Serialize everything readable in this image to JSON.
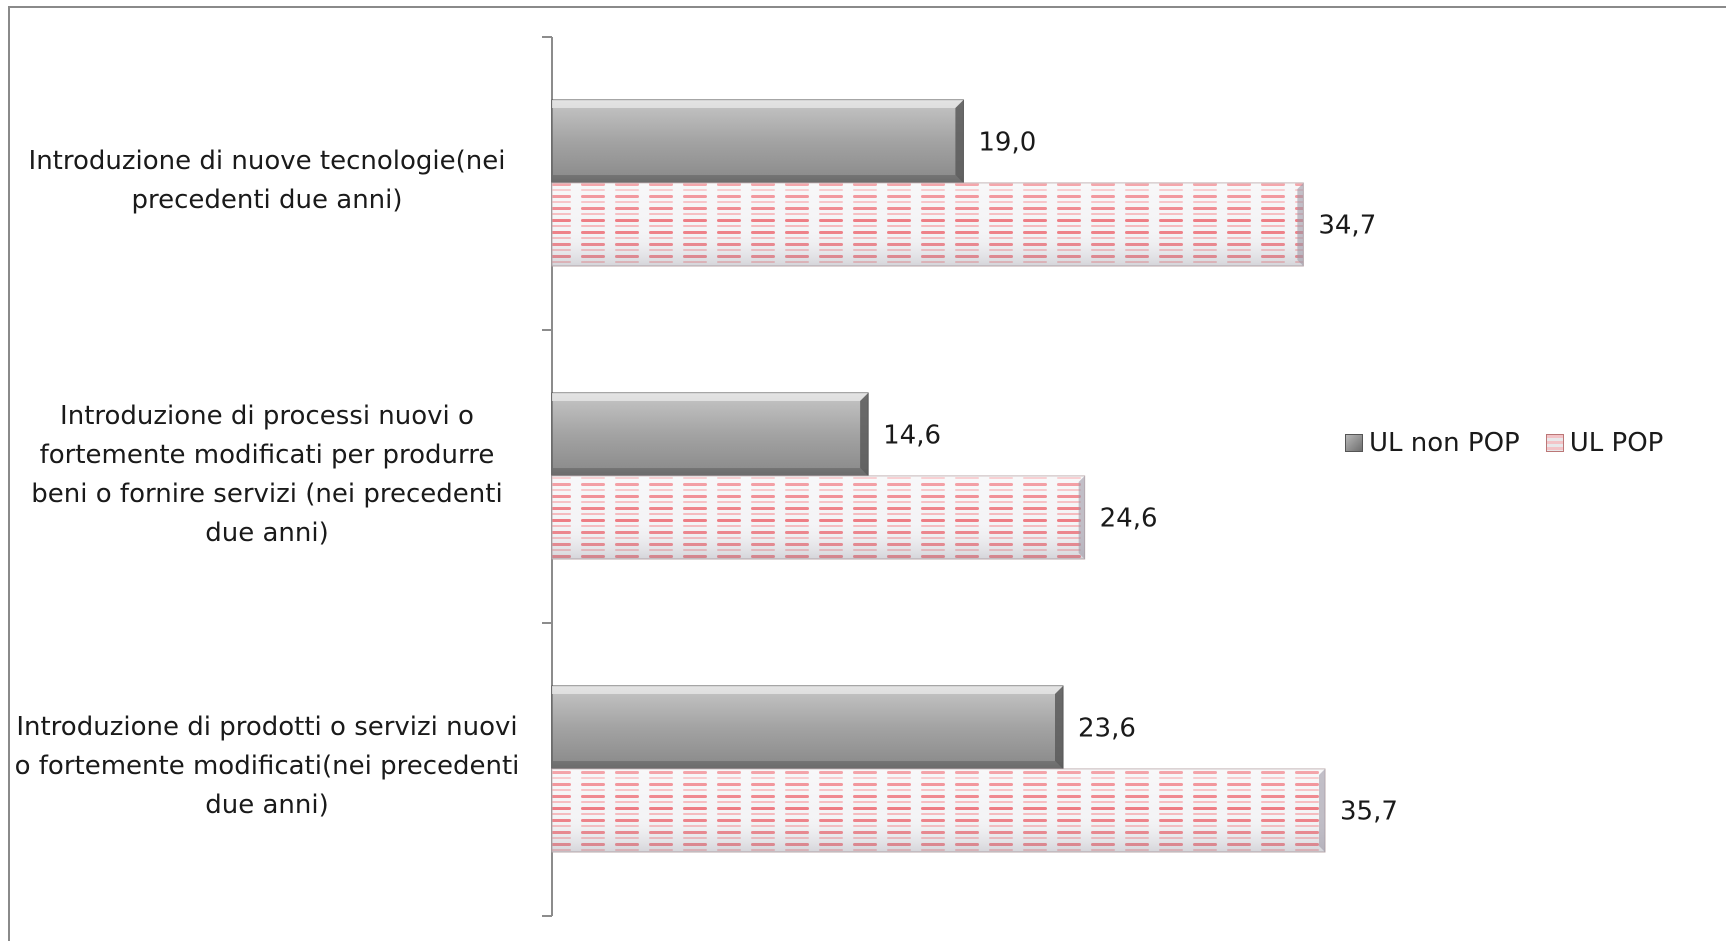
{
  "chart_data": {
    "type": "bar",
    "orientation": "horizontal",
    "categories": [
      "Introduzione di nuove tecnologie(nei precedenti due anni)",
      "Introduzione di processi nuovi o fortemente modificati per produrre beni o fornire servizi (nei precedenti due anni)",
      "Introduzione di prodotti o servizi nuovi o fortemente modificati(nei precedenti due anni)"
    ],
    "series": [
      {
        "name": "UL non POP",
        "values": [
          19.0,
          14.6,
          23.6
        ],
        "labels": [
          "19,0",
          "14,6",
          "23,6"
        ],
        "color": "#8c8c8c"
      },
      {
        "name": "UL POP",
        "values": [
          34.7,
          24.6,
          35.7
        ],
        "labels": [
          "34,7",
          "24,6",
          "35,7"
        ],
        "color": "#e8434f"
      }
    ],
    "xlim": [
      0,
      35.7
    ],
    "title": "",
    "xlabel": "",
    "ylabel": "",
    "grid": false,
    "legend_position": "right"
  }
}
